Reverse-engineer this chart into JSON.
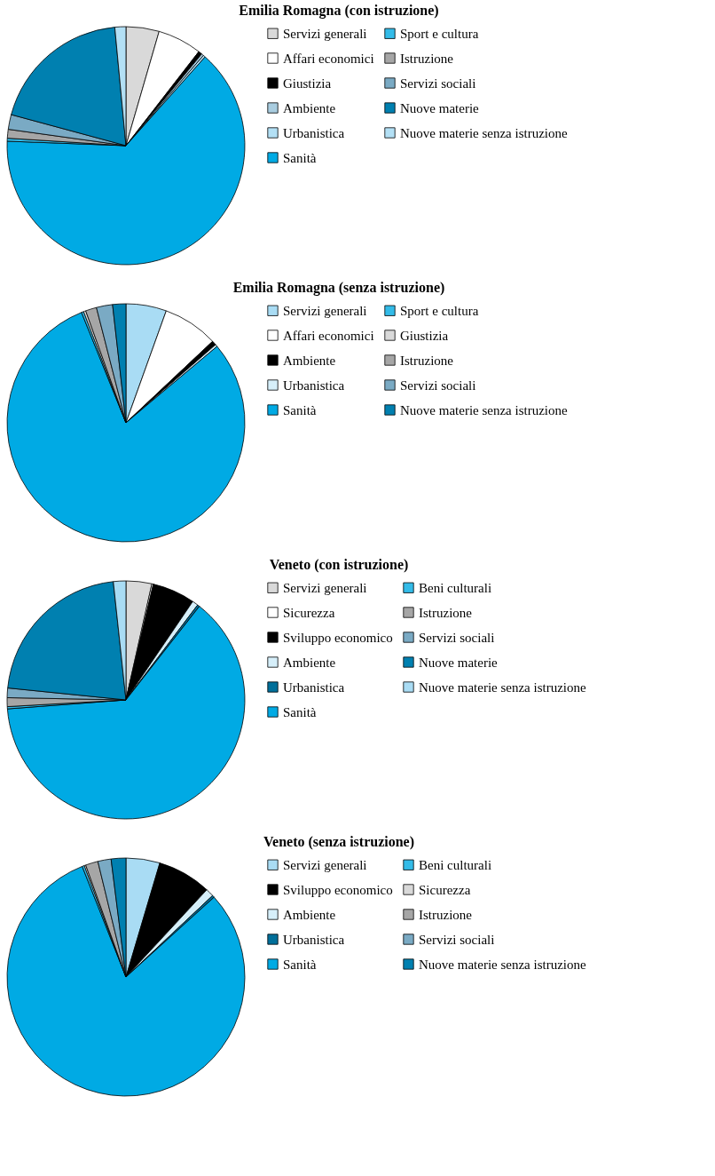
{
  "chart_data": [
    {
      "type": "pie",
      "title": "Emilia Romagna (con istruzione)",
      "legend": "right",
      "categories": [
        "Servizi generali",
        "Affari economici",
        "Giustizia",
        "Ambiente",
        "Urbanistica",
        "Sanità",
        "Sport e cultura",
        "Istruzione",
        "Servizi sociali",
        "Nuove materie",
        "Nuove materie senza istruzione"
      ],
      "values": [
        4.5,
        6,
        0.5,
        0.3,
        0.3,
        64,
        0.4,
        1.2,
        2,
        19.3,
        1.5
      ],
      "colors": [
        "#d9d9d9",
        "#ffffff",
        "#000000",
        "#a9cde0",
        "#b3e0f5",
        "#00aae4",
        "#33bbe8",
        "#a6a6a6",
        "#7aaac4",
        "#0080b0",
        "#b3e0f5"
      ]
    },
    {
      "type": "pie",
      "title": "Emilia Romagna (senza istruzione)",
      "legend": "right",
      "categories": [
        "Servizi generali",
        "Affari economici",
        "Ambiente",
        "Urbanistica",
        "Sanità",
        "Sport e cultura",
        "Giustizia",
        "Istruzione",
        "Servizi sociali",
        "Nuove materie senza istruzione"
      ],
      "values": [
        5.5,
        7.5,
        0.6,
        0.3,
        80,
        0.3,
        0.3,
        1.5,
        2.2,
        1.8
      ],
      "colors": [
        "#a9dcf4",
        "#ffffff",
        "#000000",
        "#d6effa",
        "#00aae4",
        "#33bbe8",
        "#d9d9d9",
        "#a6a6a6",
        "#7aaac4",
        "#0080b0"
      ]
    },
    {
      "type": "pie",
      "title": "Veneto (con istruzione)",
      "legend": "right",
      "categories": [
        "Servizi generali",
        "Sicurezza",
        "Sviluppo economico",
        "Ambiente",
        "Urbanistica",
        "Sanità",
        "Beni culturali",
        "Istruzione",
        "Servizi sociali",
        "Nuove materie",
        "Nuove materie senza istruzione"
      ],
      "values": [
        3.5,
        0.2,
        5.8,
        0.8,
        0.3,
        63.2,
        0.3,
        1.2,
        1.3,
        21.7,
        1.7
      ],
      "colors": [
        "#d9d9d9",
        "#ffffff",
        "#000000",
        "#d6effa",
        "#006f9a",
        "#00aae4",
        "#33bbe8",
        "#a6a6a6",
        "#7aaac4",
        "#0080b0",
        "#a9dcf4"
      ]
    },
    {
      "type": "pie",
      "title": "Veneto (senza istruzione)",
      "legend": "right",
      "categories": [
        "Servizi generali",
        "Sviluppo economico",
        "Ambiente",
        "Urbanistica",
        "Sanità",
        "Beni culturali",
        "Sicurezza",
        "Istruzione",
        "Servizi sociali",
        "Nuove materie senza istruzione"
      ],
      "values": [
        4.6,
        7.3,
        1.1,
        0.3,
        80.7,
        0.3,
        0.2,
        1.7,
        1.8,
        2.0
      ],
      "colors": [
        "#a9dcf4",
        "#000000",
        "#d6effa",
        "#006f9a",
        "#00aae4",
        "#33bbe8",
        "#d9d9d9",
        "#a6a6a6",
        "#7aaac4",
        "#0080b0"
      ]
    }
  ]
}
